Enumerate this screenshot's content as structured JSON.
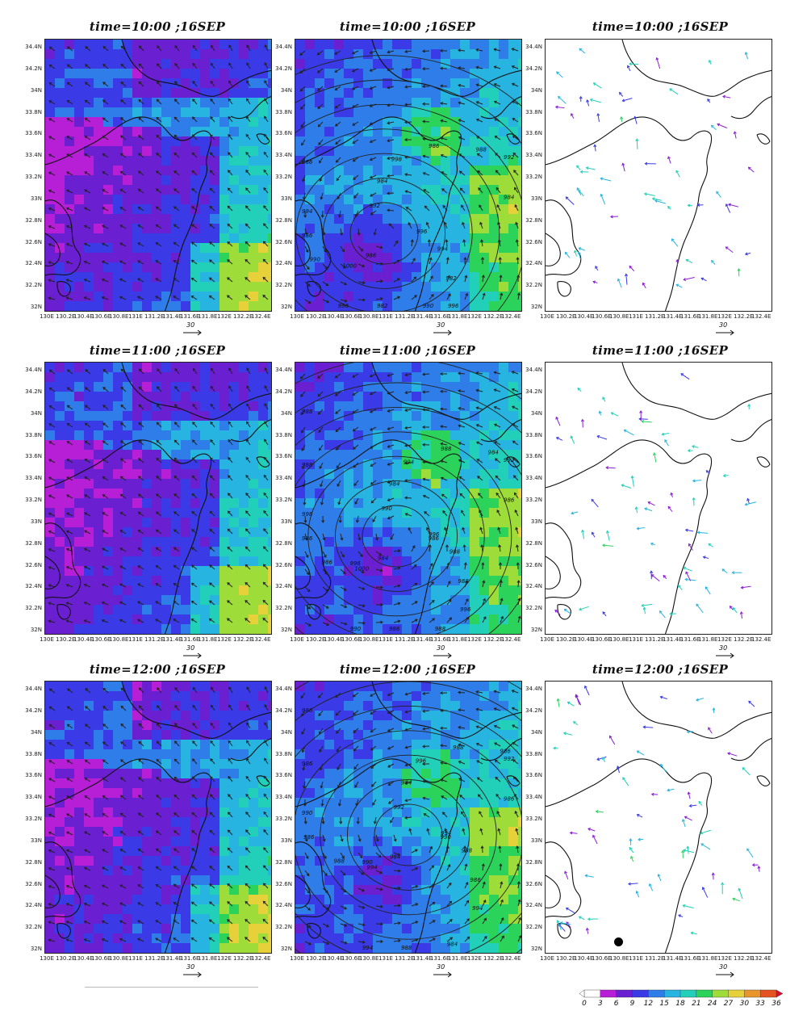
{
  "panel_titles": {
    "row1": "time=10:00 ;16SEP",
    "row2": "time=11:00 ;16SEP",
    "row3": "time=12:00 ;16SEP"
  },
  "lat_labels": [
    "34.4N",
    "34.2N",
    "34N",
    "33.8N",
    "33.6N",
    "33.4N",
    "33.2N",
    "33N",
    "32.8N",
    "32.6N",
    "32.4N",
    "32.2N",
    "32N"
  ],
  "lon_labels": [
    "130E",
    "130.2E",
    "130.4E",
    "130.6E",
    "130.8E",
    "131E",
    "131.2E",
    "131.4E",
    "131.6E",
    "131.8E",
    "132E",
    "132.2E",
    "132.4E"
  ],
  "reference_vector_label": "30",
  "colorbar": {
    "labels": [
      "0",
      "3",
      "6",
      "9",
      "12",
      "15",
      "18",
      "21",
      "24",
      "27",
      "30",
      "33",
      "36"
    ],
    "colors": [
      "#ffffff",
      "#b61fd6",
      "#6a1fd1",
      "#3a3ae6",
      "#2f7de8",
      "#27b4e0",
      "#22cfb8",
      "#2bd35b",
      "#9edc3a",
      "#e6d13a",
      "#e8962c",
      "#e55322",
      "#d8122c"
    ]
  },
  "pressure_contour_labels": {
    "row1": [
      "996",
      "1000",
      "998",
      "996",
      "994",
      "992",
      "996",
      "992",
      "994",
      "990",
      "986",
      "990",
      "986",
      "984",
      "986",
      "984",
      "982",
      "986",
      "988",
      "982"
    ],
    "row2": [
      "996",
      "1000",
      "994",
      "996",
      "998",
      "992",
      "990",
      "990",
      "988",
      "986",
      "988",
      "988",
      "988",
      "986",
      "984",
      "984",
      "988",
      "986",
      "984",
      "986",
      "988",
      "986",
      "996"
    ],
    "row3": [
      "994",
      "994",
      "996",
      "994",
      "990",
      "992",
      "994",
      "992",
      "988",
      "988",
      "988",
      "984",
      "986",
      "986",
      "984",
      "984",
      "986",
      "986",
      "986",
      "988",
      "986",
      "990",
      "990"
    ]
  },
  "map_region": "northern Kyushu",
  "marked_station": "black-dot"
}
